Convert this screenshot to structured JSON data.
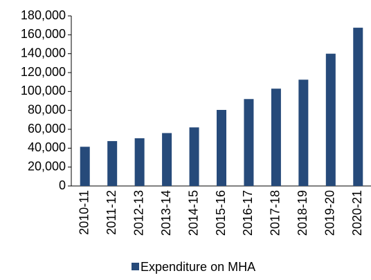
{
  "chart_data": {
    "type": "bar",
    "categories": [
      "2010-11",
      "2011-12",
      "2012-13",
      "2013-14",
      "2014-15",
      "2015-16",
      "2016-17",
      "2017-18",
      "2018-19",
      "2019-20",
      "2020-21"
    ],
    "series": [
      {
        "name": "Expenditure on MHA",
        "color": "#264a7a",
        "values": [
          41500,
          47500,
          50500,
          56000,
          62000,
          80500,
          92000,
          103000,
          112500,
          140000,
          167500
        ]
      }
    ],
    "ylim": [
      0,
      180000
    ],
    "yticks": [
      0,
      {
        "value": 20000,
        "label": "20,000"
      },
      {
        "value": 40000,
        "label": "40,000"
      },
      {
        "value": 60000,
        "label": "60,000"
      },
      {
        "value": 80000,
        "label": "80,000"
      },
      {
        "value": 100000,
        "label": "100,000"
      },
      {
        "value": 120000,
        "label": "120,000"
      },
      {
        "value": 140000,
        "label": "140,000"
      },
      {
        "value": 160000,
        "label": "160,000"
      },
      {
        "value": 180000,
        "label": "180,000"
      }
    ],
    "legend": "bottom"
  }
}
